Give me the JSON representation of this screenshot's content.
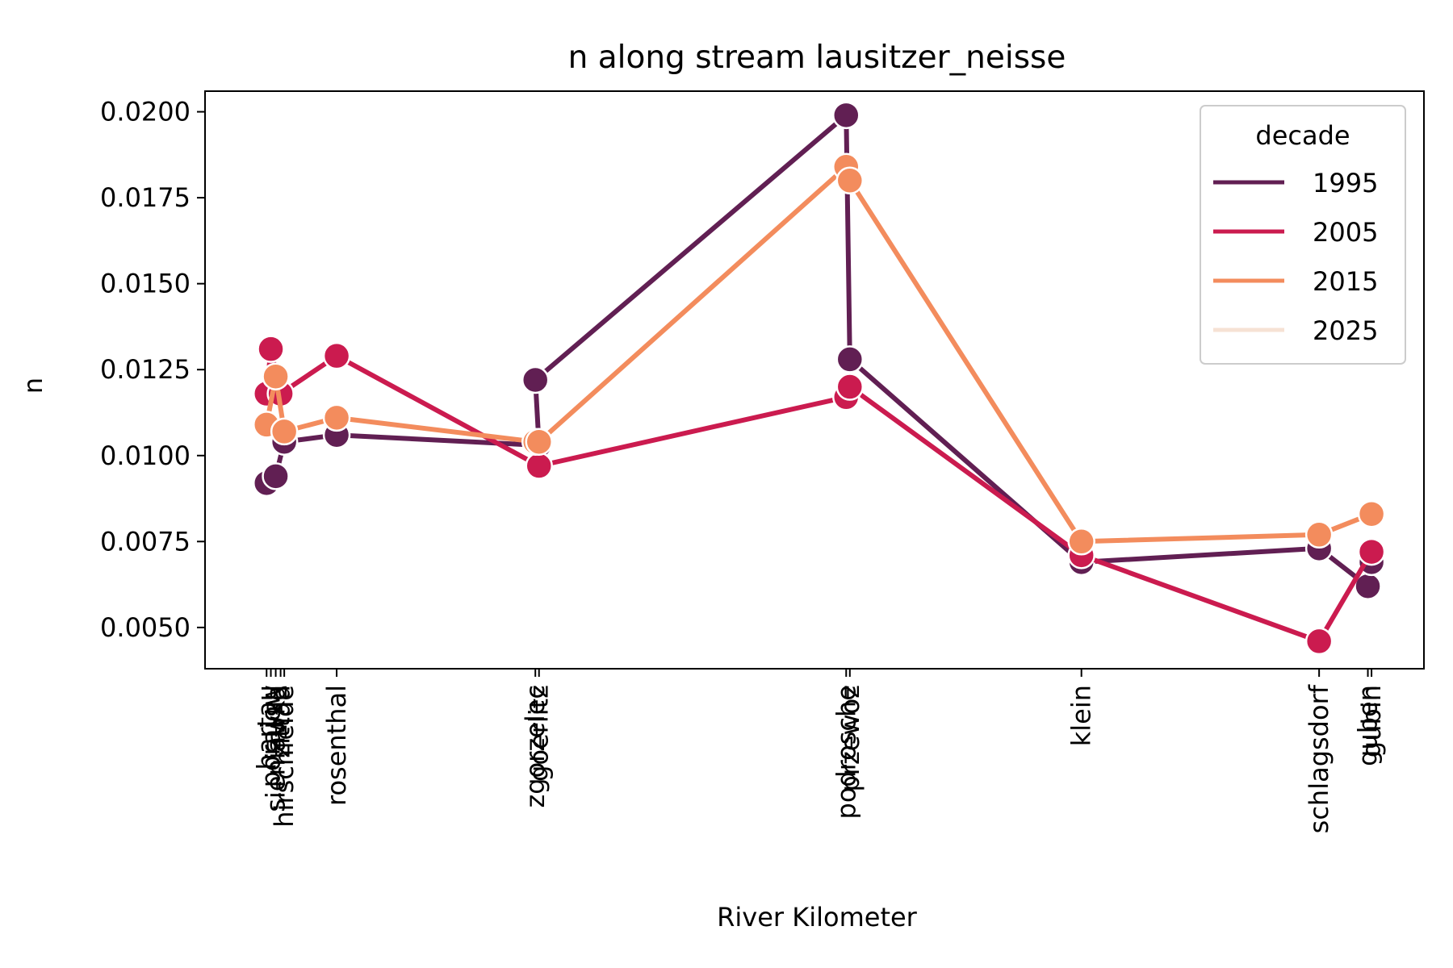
{
  "chart_data": {
    "type": "line",
    "title": "n along stream lausitzer_neisse",
    "xlabel": "River Kilometer",
    "ylabel": "n",
    "ylim": [
      0.0038,
      0.0206
    ],
    "yticks": [
      "0.0050",
      "0.0075",
      "0.0100",
      "0.0125",
      "0.0150",
      "0.0175",
      "0.0200"
    ],
    "ytick_values": [
      0.005,
      0.0075,
      0.01,
      0.0125,
      0.015,
      0.0175,
      0.02
    ],
    "xlim": [
      0,
      100
    ],
    "x_ticks": [
      {
        "label": "hartau",
        "x": 5.05
      },
      {
        "label": "porajow",
        "x": 5.4
      },
      {
        "label": "sieniawka",
        "x": 5.8
      },
      {
        "label": "zittau",
        "x": 6.2
      },
      {
        "label": "hirschfelde",
        "x": 6.5
      },
      {
        "label": "rosenthal",
        "x": 10.8
      },
      {
        "label": "zgorzelec",
        "x": 27.1
      },
      {
        "label": "goerlitz",
        "x": 27.4
      },
      {
        "label": "podrosche",
        "x": 52.6
      },
      {
        "label": "przewoz",
        "x": 52.9
      },
      {
        "label": "klein",
        "x": 71.9
      },
      {
        "label": "schlagsdorf",
        "x": 91.4
      },
      {
        "label": "guben",
        "x": 95.4
      },
      {
        "label": "gubin",
        "x": 95.7
      }
    ],
    "legend": {
      "title": "decade",
      "position": "top-right"
    },
    "series": [
      {
        "name": "1995",
        "color": "#611f53",
        "points": [
          {
            "x": 5.05,
            "y": 0.0092
          },
          {
            "x": 5.8,
            "y": 0.0094
          },
          {
            "x": 6.5,
            "y": 0.0104
          },
          {
            "x": 10.8,
            "y": 0.0106
          },
          {
            "x": 27.4,
            "y": 0.0103
          },
          {
            "x": 27.1,
            "y": 0.0122
          },
          {
            "x": 52.6,
            "y": 0.0199
          },
          {
            "x": 52.9,
            "y": 0.0128
          },
          {
            "x": 71.9,
            "y": 0.0069
          },
          {
            "x": 91.4,
            "y": 0.0073
          },
          {
            "x": 95.4,
            "y": 0.0062
          },
          {
            "x": 95.7,
            "y": 0.0069
          }
        ]
      },
      {
        "name": "2005",
        "color": "#cb1b4f",
        "points": [
          {
            "x": 5.05,
            "y": 0.0118
          },
          {
            "x": 5.4,
            "y": 0.0131
          },
          {
            "x": 6.2,
            "y": 0.0118
          },
          {
            "x": 10.8,
            "y": 0.0129
          },
          {
            "x": 27.4,
            "y": 0.0097
          },
          {
            "x": 52.6,
            "y": 0.0117
          },
          {
            "x": 52.9,
            "y": 0.012
          },
          {
            "x": 71.9,
            "y": 0.0071
          },
          {
            "x": 91.4,
            "y": 0.0046
          },
          {
            "x": 95.7,
            "y": 0.0072
          }
        ]
      },
      {
        "name": "2015",
        "color": "#f38c5d",
        "points": [
          {
            "x": 5.05,
            "y": 0.0109
          },
          {
            "x": 5.8,
            "y": 0.0123
          },
          {
            "x": 6.5,
            "y": 0.0107
          },
          {
            "x": 10.8,
            "y": 0.0111
          },
          {
            "x": 27.1,
            "y": 0.0104
          },
          {
            "x": 27.4,
            "y": 0.0104
          },
          {
            "x": 52.6,
            "y": 0.0184
          },
          {
            "x": 52.9,
            "y": 0.018
          },
          {
            "x": 71.9,
            "y": 0.0075
          },
          {
            "x": 91.4,
            "y": 0.0077
          },
          {
            "x": 95.7,
            "y": 0.0083
          }
        ]
      },
      {
        "name": "2025",
        "color": "#f6e2d4",
        "points": []
      }
    ]
  }
}
